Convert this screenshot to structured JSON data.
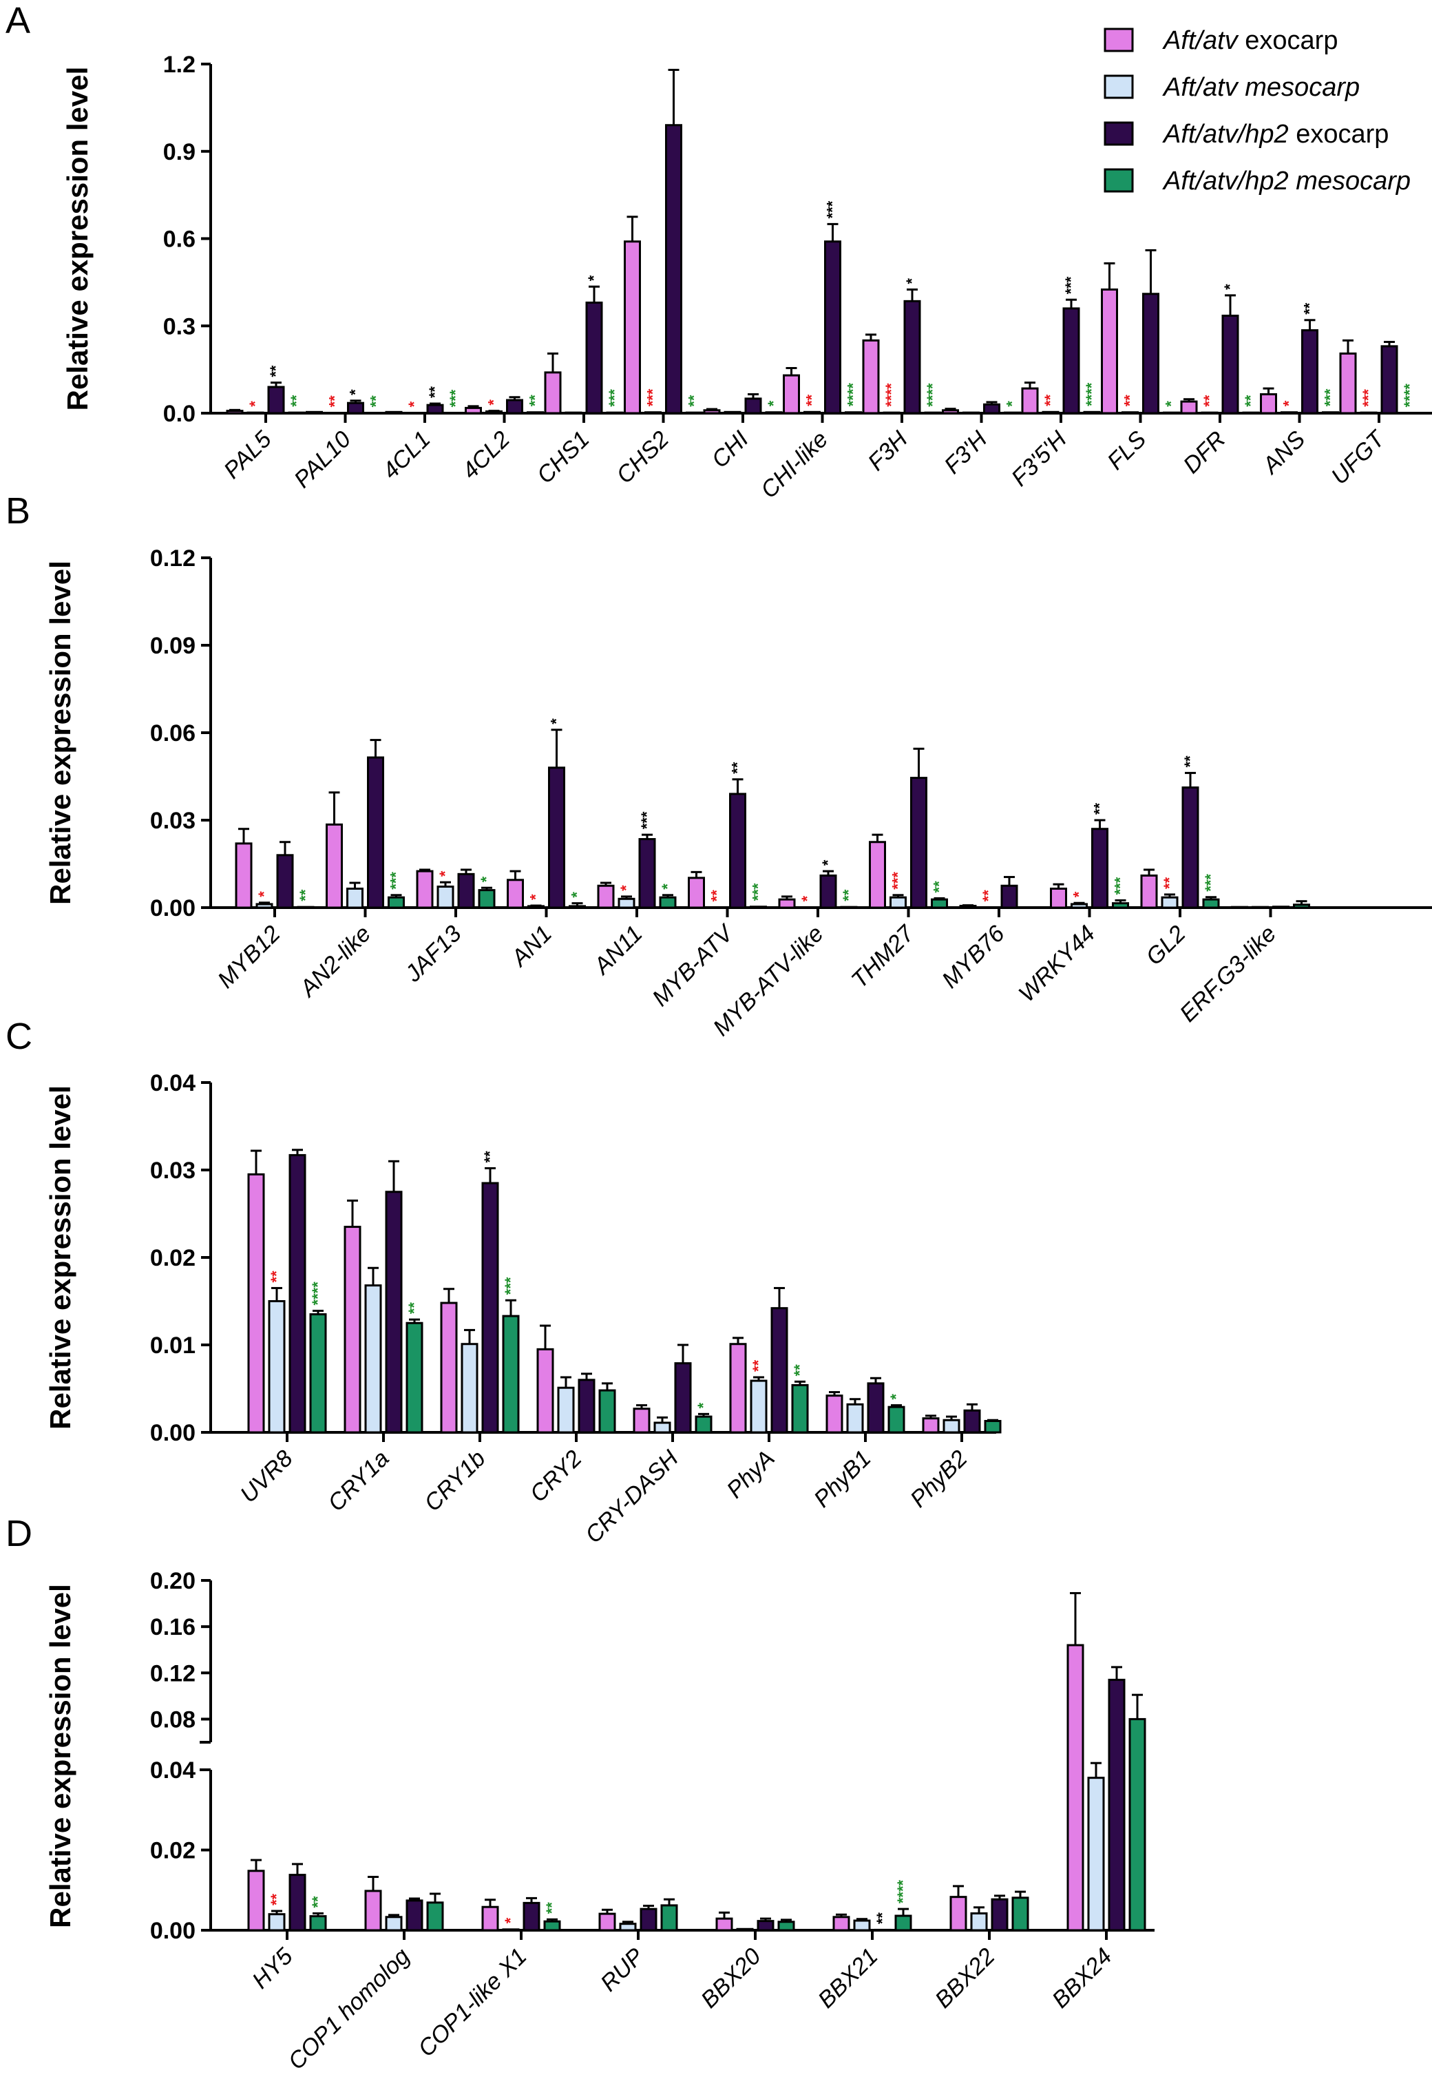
{
  "legend": [
    {
      "text": "Aft/atv exocarp",
      "italic_part": "Aft/atv",
      "rest": " exocarp",
      "color": "#e27fe6"
    },
    {
      "text": "Aft/atv mesocarp",
      "italic_part": "Aft/atv mesocarp",
      "rest": "",
      "color": "#cfe3f7"
    },
    {
      "text": "Aft/atv/hp2 exocarp",
      "italic_part": "Aft/atv/hp2",
      "rest": " exocarp",
      "color": "#2e0a4a"
    },
    {
      "text": "Aft/atv/hp2 mesocarp",
      "italic_part": "Aft/atv/hp2 mesocarp",
      "rest": "",
      "color": "#1a9463"
    }
  ],
  "sig_colors": {
    "k": "#000000",
    "r": "#e8171b",
    "g": "#1e8f2a"
  },
  "chart_data": [
    {
      "panel": "A",
      "type": "bar",
      "ylabel": "Relative expression level",
      "ylim": [
        0,
        1.2
      ],
      "yticks": [
        "0.0",
        "0.3",
        "0.6",
        "0.9",
        "1.2"
      ],
      "categories": [
        "PAL5",
        "PAL10",
        "4CL1",
        "4CL2",
        "CHS1",
        "CHS2",
        "CHI",
        "CHI-like",
        "F3H",
        "F3'H",
        "F3'5'H",
        "FLS",
        "DFR",
        "ANS",
        "UFGT"
      ],
      "series": [
        {
          "name": "Aft/atv exocarp",
          "values": [
            0.008,
            0.004,
            0.004,
            0.018,
            0.14,
            0.59,
            0.01,
            0.13,
            0.25,
            0.01,
            0.085,
            0.425,
            0.04,
            0.065,
            0.205
          ],
          "errors": [
            0.003,
            0.002,
            0.002,
            0.006,
            0.065,
            0.085,
            0.004,
            0.025,
            0.02,
            0.005,
            0.02,
            0.09,
            0.008,
            0.02,
            0.045
          ]
        },
        {
          "name": "Aft/atv mesocarp",
          "values": [
            0.002,
            0.001,
            0.001,
            0.006,
            0.002,
            0.003,
            0.004,
            0.004,
            0.002,
            0.002,
            0.004,
            0.003,
            0.002,
            0.003,
            0.002
          ],
          "errors": [
            0.001,
            0.0005,
            0.0005,
            0.002,
            0.001,
            0.001,
            0.001,
            0.001,
            0.001,
            0.001,
            0.001,
            0.001,
            0.001,
            0.001,
            0.001
          ]
        },
        {
          "name": "Aft/atv/hp2 exocarp",
          "values": [
            0.09,
            0.035,
            0.028,
            0.045,
            0.38,
            0.99,
            0.05,
            0.59,
            0.385,
            0.03,
            0.36,
            0.41,
            0.335,
            0.285,
            0.23
          ],
          "errors": [
            0.015,
            0.008,
            0.005,
            0.01,
            0.055,
            0.19,
            0.015,
            0.06,
            0.04,
            0.008,
            0.03,
            0.15,
            0.07,
            0.035,
            0.015
          ]
        },
        {
          "name": "Aft/atv/hp2 mesocarp",
          "values": [
            0.002,
            0.001,
            0.001,
            0.003,
            0.002,
            0.002,
            0.003,
            0.003,
            0.002,
            0.002,
            0.004,
            0.002,
            0.002,
            0.003,
            0.001
          ],
          "errors": [
            0.001,
            0.0005,
            0.0005,
            0.001,
            0.001,
            0.001,
            0.001,
            0.001,
            0.001,
            0.001,
            0.001,
            0.001,
            0.001,
            0.001,
            0.0005
          ]
        }
      ],
      "annotations": [
        {
          "cat": 0,
          "bar": 1,
          "text": "*",
          "color": "r"
        },
        {
          "cat": 0,
          "bar": 2,
          "text": "**",
          "color": "k"
        },
        {
          "cat": 0,
          "bar": 3,
          "text": "**",
          "color": "g"
        },
        {
          "cat": 1,
          "bar": 1,
          "text": "**",
          "color": "r"
        },
        {
          "cat": 1,
          "bar": 2,
          "text": "*",
          "color": "k"
        },
        {
          "cat": 1,
          "bar": 3,
          "text": "**",
          "color": "g"
        },
        {
          "cat": 2,
          "bar": 1,
          "text": "*",
          "color": "r"
        },
        {
          "cat": 2,
          "bar": 2,
          "text": "**",
          "color": "k"
        },
        {
          "cat": 2,
          "bar": 3,
          "text": "***",
          "color": "g"
        },
        {
          "cat": 3,
          "bar": 1,
          "text": "*",
          "color": "r"
        },
        {
          "cat": 3,
          "bar": 3,
          "text": "**",
          "color": "g"
        },
        {
          "cat": 4,
          "bar": 2,
          "text": "*",
          "color": "k"
        },
        {
          "cat": 4,
          "bar": 3,
          "text": "***",
          "color": "g"
        },
        {
          "cat": 5,
          "bar": 1,
          "text": "***",
          "color": "r"
        },
        {
          "cat": 5,
          "bar": 3,
          "text": "**",
          "color": "g"
        },
        {
          "cat": 6,
          "bar": 3,
          "text": "*",
          "color": "g"
        },
        {
          "cat": 7,
          "bar": 1,
          "text": "**",
          "color": "r"
        },
        {
          "cat": 7,
          "bar": 2,
          "text": "***",
          "color": "k"
        },
        {
          "cat": 7,
          "bar": 3,
          "text": "****",
          "color": "g"
        },
        {
          "cat": 8,
          "bar": 1,
          "text": "****",
          "color": "r"
        },
        {
          "cat": 8,
          "bar": 2,
          "text": "*",
          "color": "k"
        },
        {
          "cat": 8,
          "bar": 3,
          "text": "****",
          "color": "g"
        },
        {
          "cat": 9,
          "bar": 3,
          "text": "*",
          "color": "g"
        },
        {
          "cat": 10,
          "bar": 1,
          "text": "**",
          "color": "r"
        },
        {
          "cat": 10,
          "bar": 2,
          "text": "***",
          "color": "k"
        },
        {
          "cat": 10,
          "bar": 3,
          "text": "****",
          "color": "g"
        },
        {
          "cat": 11,
          "bar": 1,
          "text": "**",
          "color": "r"
        },
        {
          "cat": 11,
          "bar": 3,
          "text": "*",
          "color": "g"
        },
        {
          "cat": 12,
          "bar": 1,
          "text": "**",
          "color": "r"
        },
        {
          "cat": 12,
          "bar": 2,
          "text": "*",
          "color": "k"
        },
        {
          "cat": 12,
          "bar": 3,
          "text": "**",
          "color": "g"
        },
        {
          "cat": 13,
          "bar": 1,
          "text": "*",
          "color": "r"
        },
        {
          "cat": 13,
          "bar": 2,
          "text": "**",
          "color": "k"
        },
        {
          "cat": 13,
          "bar": 3,
          "text": "***",
          "color": "g"
        },
        {
          "cat": 14,
          "bar": 1,
          "text": "***",
          "color": "r"
        },
        {
          "cat": 14,
          "bar": 3,
          "text": "****",
          "color": "g"
        }
      ]
    },
    {
      "panel": "B",
      "type": "bar",
      "ylabel": "Relative expression level",
      "ylim": [
        0,
        0.12
      ],
      "yticks": [
        "0.00",
        "0.03",
        "0.06",
        "0.09",
        "0.12"
      ],
      "categories": [
        "MYB12",
        "AN2-like",
        "JAF13",
        "AN1",
        "AN11",
        "MYB-ATV",
        "MYB-ATV-like",
        "THM27",
        "MYB76",
        "WRKY44",
        "GL2",
        "ERF.G3-like"
      ],
      "series": [
        {
          "name": "Aft/atv exocarp",
          "values": [
            0.022,
            0.0285,
            0.0125,
            0.0095,
            0.0075,
            0.0102,
            0.0028,
            0.0225,
            0.0006,
            0.0065,
            0.011,
            0.0002
          ],
          "errors": [
            0.005,
            0.011,
            0.0005,
            0.003,
            0.001,
            0.002,
            0.001,
            0.0025,
            0.0002,
            0.0015,
            0.002,
            0.0001
          ]
        },
        {
          "name": "Aft/atv mesocarp",
          "values": [
            0.0012,
            0.0065,
            0.0072,
            0.0005,
            0.003,
            0.0001,
            0.0001,
            0.0035,
            0.0001,
            0.0012,
            0.0035,
            0.0002
          ],
          "errors": [
            0.0005,
            0.002,
            0.0015,
            0.0002,
            0.0008,
            5e-05,
            5e-05,
            0.0008,
            5e-05,
            0.0004,
            0.001,
            0.0001
          ]
        },
        {
          "name": "Aft/atv/hp2 exocarp",
          "values": [
            0.018,
            0.0515,
            0.0115,
            0.048,
            0.0235,
            0.039,
            0.011,
            0.0445,
            0.0075,
            0.027,
            0.0412,
            0.0003
          ],
          "errors": [
            0.0045,
            0.006,
            0.0015,
            0.013,
            0.0015,
            0.005,
            0.0015,
            0.01,
            0.003,
            0.003,
            0.005,
            0.0001
          ]
        },
        {
          "name": "Aft/atv/hp2 mesocarp",
          "values": [
            0.0002,
            0.0035,
            0.006,
            0.0005,
            0.0035,
            0.0003,
            0.0002,
            0.0028,
            0.0001,
            0.0015,
            0.0028,
            0.001
          ],
          "errors": [
            0.0001,
            0.0008,
            0.0008,
            0.001,
            0.0008,
            0.0001,
            0.0001,
            0.0004,
            5e-05,
            0.001,
            0.0008,
            0.0012
          ]
        }
      ],
      "annotations": [
        {
          "cat": 0,
          "bar": 1,
          "text": "*",
          "color": "r"
        },
        {
          "cat": 0,
          "bar": 3,
          "text": "**",
          "color": "g"
        },
        {
          "cat": 1,
          "bar": 3,
          "text": "***",
          "color": "g"
        },
        {
          "cat": 2,
          "bar": 1,
          "text": "*",
          "color": "r"
        },
        {
          "cat": 2,
          "bar": 3,
          "text": "*",
          "color": "g"
        },
        {
          "cat": 3,
          "bar": 1,
          "text": "*",
          "color": "r"
        },
        {
          "cat": 3,
          "bar": 2,
          "text": "*",
          "color": "k"
        },
        {
          "cat": 3,
          "bar": 3,
          "text": "*",
          "color": "g"
        },
        {
          "cat": 4,
          "bar": 1,
          "text": "*",
          "color": "r"
        },
        {
          "cat": 4,
          "bar": 2,
          "text": "***",
          "color": "k"
        },
        {
          "cat": 4,
          "bar": 3,
          "text": "*",
          "color": "g"
        },
        {
          "cat": 5,
          "bar": 1,
          "text": "**",
          "color": "r"
        },
        {
          "cat": 5,
          "bar": 2,
          "text": "**",
          "color": "k"
        },
        {
          "cat": 5,
          "bar": 3,
          "text": "***",
          "color": "g"
        },
        {
          "cat": 6,
          "bar": 1,
          "text": "*",
          "color": "r"
        },
        {
          "cat": 6,
          "bar": 2,
          "text": "*",
          "color": "k"
        },
        {
          "cat": 6,
          "bar": 3,
          "text": "**",
          "color": "g"
        },
        {
          "cat": 7,
          "bar": 1,
          "text": "***",
          "color": "r"
        },
        {
          "cat": 7,
          "bar": 3,
          "text": "**",
          "color": "g"
        },
        {
          "cat": 8,
          "bar": 1,
          "text": "**",
          "color": "r"
        },
        {
          "cat": 9,
          "bar": 1,
          "text": "*",
          "color": "r"
        },
        {
          "cat": 9,
          "bar": 2,
          "text": "**",
          "color": "k"
        },
        {
          "cat": 9,
          "bar": 3,
          "text": "***",
          "color": "g"
        },
        {
          "cat": 10,
          "bar": 1,
          "text": "**",
          "color": "r"
        },
        {
          "cat": 10,
          "bar": 2,
          "text": "**",
          "color": "k"
        },
        {
          "cat": 10,
          "bar": 3,
          "text": "***",
          "color": "g"
        }
      ]
    },
    {
      "panel": "C",
      "type": "bar",
      "ylabel": "Relative expression level",
      "ylim": [
        0,
        0.04
      ],
      "yticks": [
        "0.00",
        "0.01",
        "0.02",
        "0.03",
        "0.04"
      ],
      "categories": [
        "UVR8",
        "CRY1a",
        "CRY1b",
        "CRY2",
        "CRY-DASH",
        "PhyA",
        "PhyB1",
        "PhyB2"
      ],
      "series": [
        {
          "name": "Aft/atv exocarp",
          "values": [
            0.0295,
            0.0235,
            0.0148,
            0.0095,
            0.0027,
            0.0101,
            0.0042,
            0.0016
          ],
          "errors": [
            0.0027,
            0.003,
            0.0016,
            0.0027,
            0.0004,
            0.0007,
            0.0004,
            0.0003
          ]
        },
        {
          "name": "Aft/atv mesocarp",
          "values": [
            0.015,
            0.0168,
            0.0101,
            0.0051,
            0.0011,
            0.0059,
            0.0032,
            0.0014
          ],
          "errors": [
            0.0015,
            0.002,
            0.0016,
            0.0012,
            0.0006,
            0.0004,
            0.0006,
            0.0004
          ]
        },
        {
          "name": "Aft/atv/hp2 exocarp",
          "values": [
            0.0317,
            0.0275,
            0.0285,
            0.006,
            0.0079,
            0.0142,
            0.0056,
            0.0025
          ],
          "errors": [
            0.0006,
            0.0035,
            0.0017,
            0.0007,
            0.0021,
            0.0023,
            0.0006,
            0.0007
          ]
        },
        {
          "name": "Aft/atv/hp2 mesocarp",
          "values": [
            0.0135,
            0.0125,
            0.0133,
            0.0048,
            0.0018,
            0.0054,
            0.0029,
            0.0013
          ],
          "errors": [
            0.0004,
            0.0004,
            0.0018,
            0.0008,
            0.0003,
            0.0004,
            0.0002,
            0.0001
          ]
        }
      ],
      "annotations": [
        {
          "cat": 0,
          "bar": 1,
          "text": "**",
          "color": "r"
        },
        {
          "cat": 0,
          "bar": 3,
          "text": "****",
          "color": "g"
        },
        {
          "cat": 1,
          "bar": 3,
          "text": "**",
          "color": "g"
        },
        {
          "cat": 2,
          "bar": 2,
          "text": "**",
          "color": "k"
        },
        {
          "cat": 2,
          "bar": 3,
          "text": "***",
          "color": "g"
        },
        {
          "cat": 4,
          "bar": 3,
          "text": "*",
          "color": "g"
        },
        {
          "cat": 5,
          "bar": 1,
          "text": "**",
          "color": "r"
        },
        {
          "cat": 5,
          "bar": 3,
          "text": "**",
          "color": "g"
        },
        {
          "cat": 6,
          "bar": 3,
          "text": "*",
          "color": "g"
        }
      ]
    },
    {
      "panel": "D",
      "type": "bar",
      "ylabel": "Relative expression level",
      "ylim_lower": [
        0,
        0.04
      ],
      "ylim_upper": [
        0.06,
        0.2
      ],
      "yticks_lower": [
        "0.00",
        "0.02",
        "0.04"
      ],
      "yticks_upper": [
        "0.08",
        "0.12",
        "0.16",
        "0.20"
      ],
      "categories": [
        "HY5",
        "COP1 homolog",
        "COP1-like X1",
        "RUP",
        "BBX20",
        "BBX21",
        "BBX22",
        "BBX24"
      ],
      "series": [
        {
          "name": "Aft/atv exocarp",
          "values": [
            0.0148,
            0.0098,
            0.0058,
            0.0041,
            0.0029,
            0.0033,
            0.0083,
            0.144
          ],
          "errors": [
            0.0027,
            0.0035,
            0.0018,
            0.001,
            0.0015,
            0.0006,
            0.0027,
            0.045
          ]
        },
        {
          "name": "Aft/atv mesocarp",
          "values": [
            0.004,
            0.0033,
            0.0002,
            0.0016,
            0.0003,
            0.0024,
            0.0042,
            0.038
          ],
          "errors": [
            0.0008,
            0.0005,
            0.0001,
            0.0005,
            0.0001,
            0.0004,
            0.0015,
            0.004
          ]
        },
        {
          "name": "Aft/atv/hp2 exocarp",
          "values": [
            0.0138,
            0.0074,
            0.0068,
            0.0053,
            0.0023,
            0.0001,
            0.0077,
            0.114
          ],
          "errors": [
            0.0027,
            0.0005,
            0.0012,
            0.0008,
            0.0006,
            5e-05,
            0.0009,
            0.011
          ]
        },
        {
          "name": "Aft/atv/hp2 mesocarp",
          "values": [
            0.0035,
            0.0069,
            0.0022,
            0.0062,
            0.0021,
            0.0036,
            0.0081,
            0.08
          ],
          "errors": [
            0.0007,
            0.0022,
            0.0005,
            0.0015,
            0.0005,
            0.0017,
            0.0015,
            0.021
          ]
        }
      ],
      "annotations": [
        {
          "cat": 0,
          "bar": 1,
          "text": "**",
          "color": "r"
        },
        {
          "cat": 0,
          "bar": 3,
          "text": "**",
          "color": "g"
        },
        {
          "cat": 2,
          "bar": 1,
          "text": "*",
          "color": "r"
        },
        {
          "cat": 2,
          "bar": 3,
          "text": "**",
          "color": "g"
        },
        {
          "cat": 5,
          "bar": 2,
          "text": "**",
          "color": "k"
        },
        {
          "cat": 5,
          "bar": 3,
          "text": "****",
          "color": "g"
        }
      ]
    }
  ]
}
